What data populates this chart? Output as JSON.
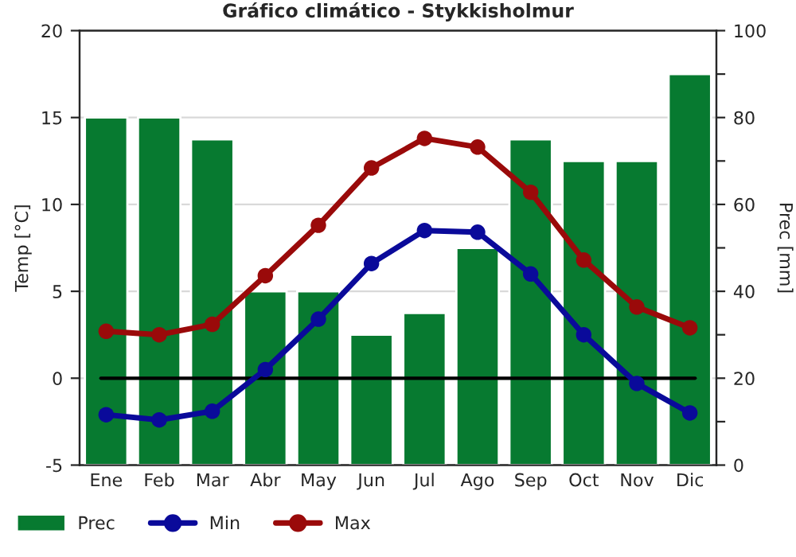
{
  "chart_data": {
    "type": "line",
    "title": "Gráfico climático - Stykkisholmur",
    "categories": [
      "Ene",
      "Feb",
      "Mar",
      "Abr",
      "May",
      "Jun",
      "Jul",
      "Ago",
      "Sep",
      "Oct",
      "Nov",
      "Dic"
    ],
    "ylabel": "Temp [°C]",
    "y2label": "Prec [mm]",
    "ylim": [
      -5,
      20
    ],
    "yticks": [
      -5,
      0,
      5,
      10,
      15,
      20
    ],
    "y2lim": [
      0,
      100
    ],
    "y2ticks": [
      0,
      {
        "value": 10,
        "label": null
      },
      20,
      {
        "value": 30,
        "label": null
      },
      40,
      {
        "value": 50,
        "label": null
      },
      60,
      {
        "value": 70,
        "label": null
      },
      80,
      {
        "value": 90,
        "label": null
      },
      100
    ],
    "series": [
      {
        "name": "Prec",
        "type": "bar",
        "axis": "y2",
        "color": "#077a30",
        "values": [
          80,
          80,
          75,
          40,
          40,
          30,
          35,
          50,
          75,
          70,
          70,
          90
        ]
      },
      {
        "name": "Min",
        "color": "#0a0a9a",
        "values": [
          -2.1,
          -2.4,
          -1.9,
          0.5,
          3.4,
          6.6,
          8.5,
          8.4,
          6.0,
          2.5,
          -0.3,
          -2.0
        ]
      },
      {
        "name": "Max",
        "color": "#9a0a0a",
        "values": [
          2.7,
          2.5,
          3.1,
          5.9,
          8.8,
          12.1,
          13.8,
          13.3,
          10.7,
          6.8,
          4.1,
          2.9
        ]
      }
    ],
    "ref_lines": [
      {
        "axis": "y",
        "value": 0,
        "color": "#000000"
      }
    ],
    "grid": true,
    "legend": "bottom",
    "marker": "circle",
    "line_style": "solid"
  }
}
